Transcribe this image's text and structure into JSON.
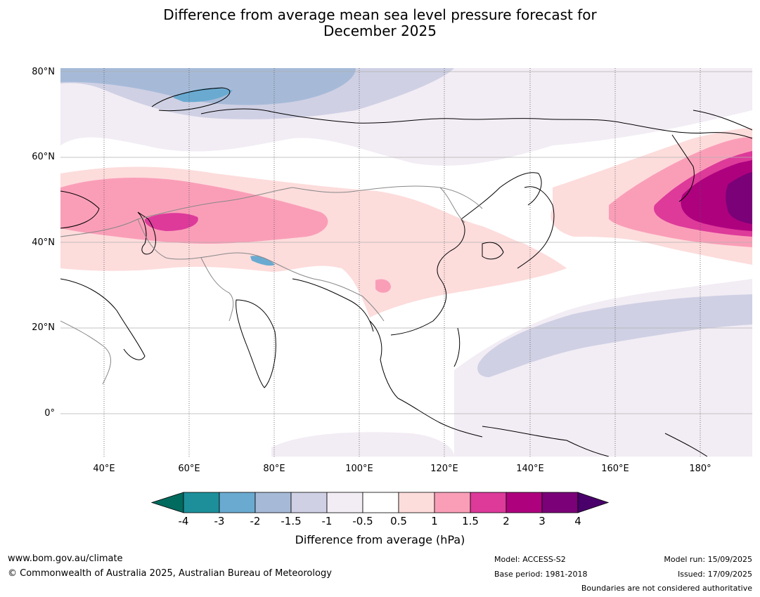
{
  "title_line1": "Difference from average mean sea level pressure forecast for",
  "title_line2": "December 2025",
  "lat_labels": [
    "80°N",
    "60°N",
    "40°N",
    "20°N",
    "0°"
  ],
  "lon_labels": [
    "40°E",
    "60°E",
    "80°E",
    "100°E",
    "120°E",
    "140°E",
    "160°E",
    "180°"
  ],
  "colorbar": {
    "labels": [
      "-4",
      "-3",
      "-2",
      "-1.5",
      "-1",
      "-0.5",
      "0.5",
      "1",
      "1.5",
      "2",
      "3",
      "4"
    ],
    "colors": [
      "#006b5e",
      "#1c8f9a",
      "#6aaad1",
      "#a6bad8",
      "#cfd0e4",
      "#f2ecf4",
      "#ffffff",
      "#fddcdc",
      "#fa9eb8",
      "#dd3a9a",
      "#ae017e",
      "#7a0177",
      "#49006a"
    ],
    "title": "Difference from average (hPa)"
  },
  "footer": {
    "website": "www.bom.gov.au/climate",
    "copyright": "© Commonwealth of Australia 2025, Australian Bureau of Meteorology",
    "model": "Model: ACCESS-S2",
    "base_period": "Base period: 1981-2018",
    "model_run": "Model run: 15/09/2025",
    "issued": "Issued: 17/09/2025",
    "disclaimer": "Boundaries are not considered authoritative"
  }
}
